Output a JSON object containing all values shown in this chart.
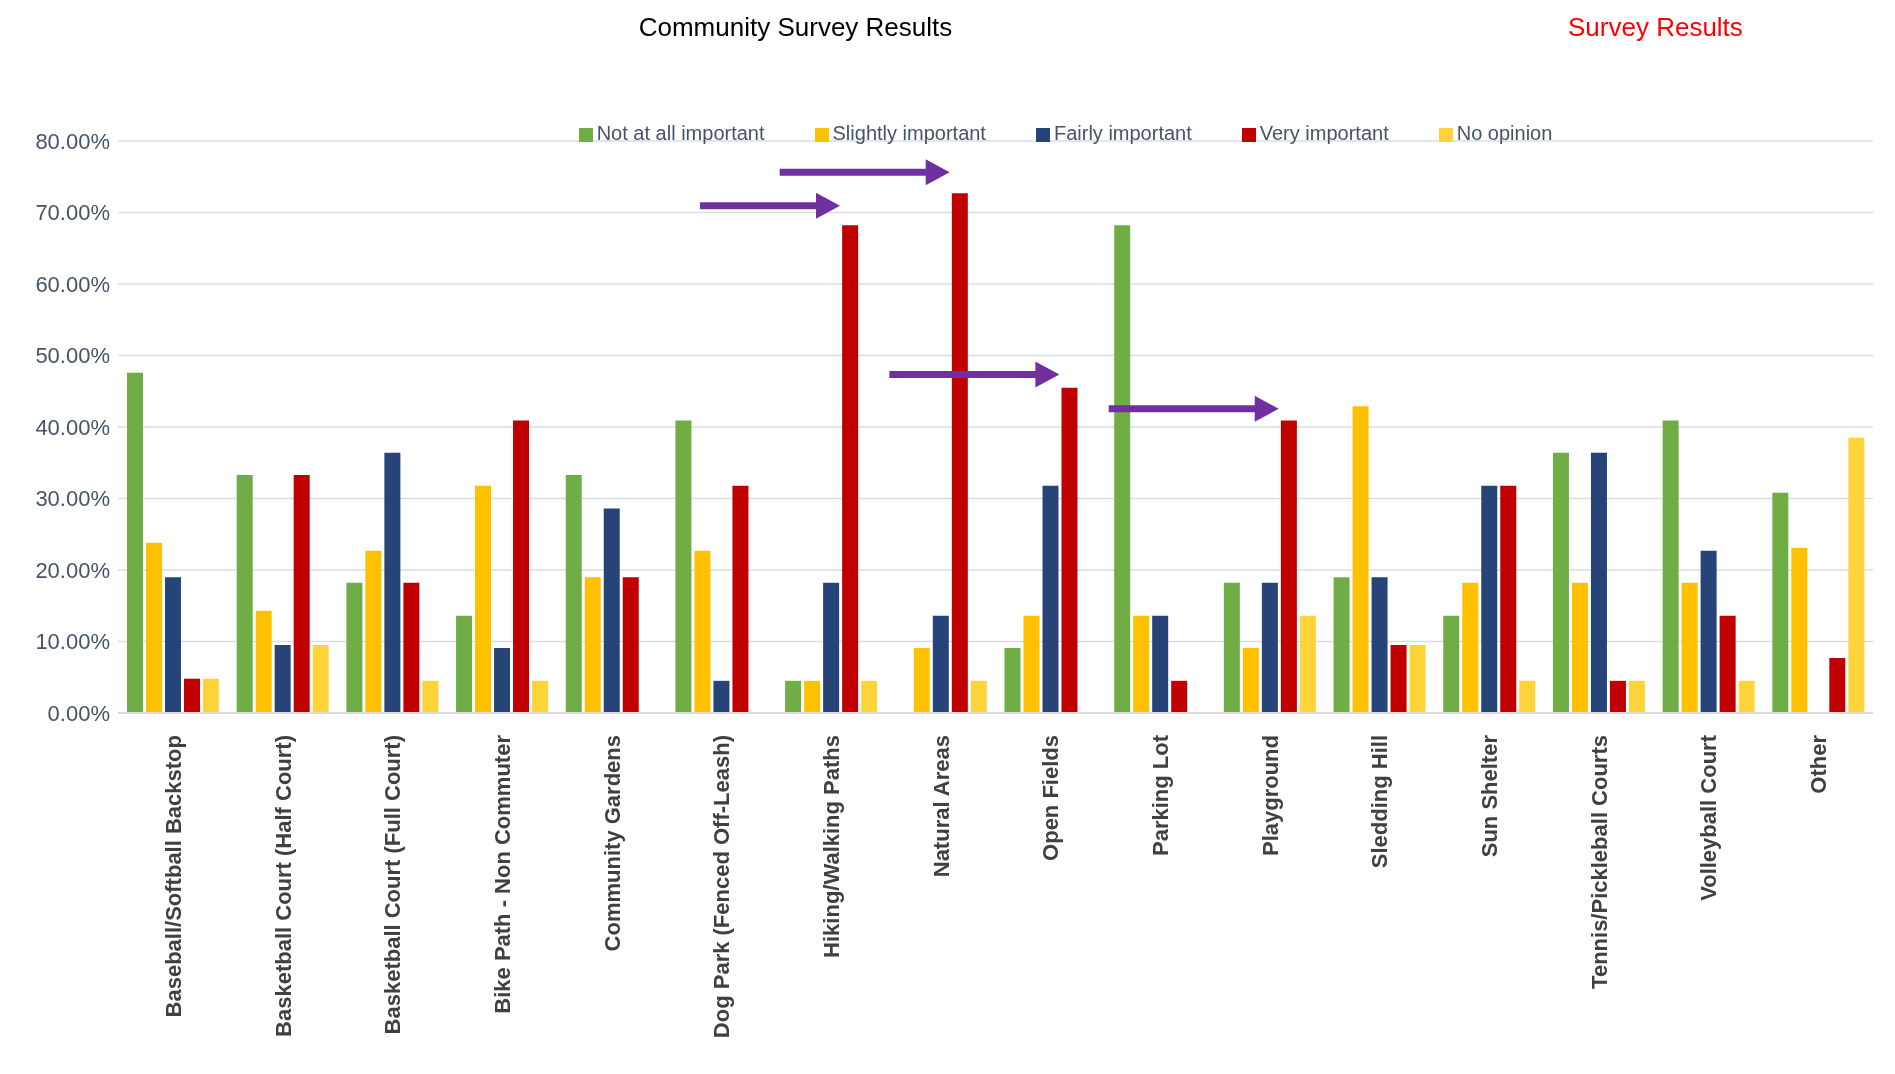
{
  "chart_data": {
    "type": "bar",
    "title": "Community Survey Results",
    "annotations": [
      "Survey Results"
    ],
    "categories": [
      "Baseball/Softball Backstop",
      "Basketball Court (Half Court)",
      "Basketball Court (Full Court)",
      "Bike Path - Non Commuter",
      "Community Gardens",
      "Dog Park (Fenced Off-Leash)",
      "Hiking/Walking Paths",
      "Natural Areas",
      "Open Fields",
      "Parking Lot",
      "Playground",
      "Sledding Hill",
      "Sun Shelter",
      "Tennis/Pickleball Courts",
      "Volleyball Court",
      "Other"
    ],
    "series": [
      {
        "name": "Not at all important",
        "color": "#70ad47",
        "values": [
          47.6,
          33.3,
          18.2,
          13.6,
          33.3,
          40.9,
          4.5,
          0,
          9.1,
          68.2,
          18.2,
          19.0,
          13.6,
          36.4,
          40.9,
          30.8
        ]
      },
      {
        "name": "Slightly important",
        "color": "#ffc000",
        "values": [
          23.8,
          14.3,
          22.7,
          31.8,
          19.0,
          22.7,
          4.5,
          9.1,
          13.6,
          13.6,
          9.1,
          42.9,
          18.2,
          18.2,
          18.2,
          23.1
        ]
      },
      {
        "name": "Fairly important",
        "color": "#264478",
        "values": [
          19.0,
          9.5,
          36.4,
          9.1,
          28.6,
          4.5,
          18.2,
          13.6,
          31.8,
          13.6,
          18.2,
          19.0,
          31.8,
          36.4,
          22.7,
          0
        ]
      },
      {
        "name": "Very important",
        "color": "#c00000",
        "values": [
          4.8,
          33.3,
          18.2,
          40.9,
          19.0,
          31.8,
          68.2,
          72.7,
          45.5,
          4.5,
          40.9,
          9.5,
          31.8,
          4.5,
          13.6,
          7.7
        ]
      },
      {
        "name": "No opinion",
        "color": "#ffd43b",
        "values": [
          4.8,
          9.5,
          4.5,
          4.5,
          0,
          0,
          4.5,
          4.5,
          0,
          0,
          13.6,
          9.5,
          4.5,
          4.5,
          4.5,
          38.5
        ]
      }
    ],
    "ylim": [
      0,
      80
    ],
    "yticks": [
      {
        "value": 0,
        "label": "0.00%"
      },
      {
        "value": 10,
        "label": "10.00%"
      },
      {
        "value": 20,
        "label": "20.00%"
      },
      {
        "value": 30,
        "label": "30.00%"
      },
      {
        "value": 40,
        "label": "40.00%"
      },
      {
        "value": 50,
        "label": "50.00%"
      },
      {
        "value": 60,
        "label": "60.00%"
      },
      {
        "value": 70,
        "label": "70.00%"
      },
      {
        "value": 80,
        "label": "80.00%"
      }
    ],
    "grid": "y",
    "legend": "top"
  }
}
